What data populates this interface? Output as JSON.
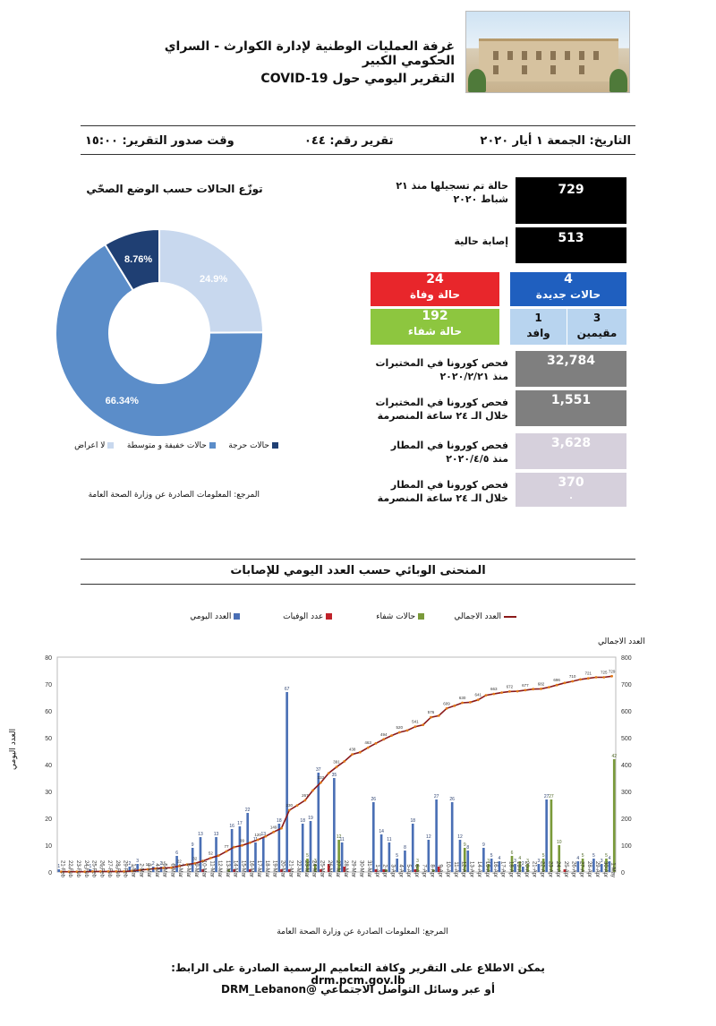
{
  "header": {
    "title_line1": "غرفة العمليات الوطنية لإدارة الكوارث - السراي الحكومي الكبير",
    "title_line2": "التقرير اليومي حول COVID-19"
  },
  "info_bar": {
    "date": "التاريخ: الجمعة ١ أيار ٢٠٢٠",
    "report_no": "تقرير رقم: ٠٤٤",
    "issue_time": "وقت صدور التقرير: ١٥:٠٠"
  },
  "stats": {
    "total_label": "حالة تم تسجيلها منذ ٢١ شباط ٢٠٢٠",
    "total_value": "729",
    "active_label": "إصابة حالية",
    "active_value": "513",
    "new_value": "4",
    "new_label": "حالات جديدة",
    "deaths_value": "24",
    "deaths_label": "حالة وفاة",
    "recovered_value": "192",
    "recovered_label": "حالة شفاء",
    "residents_value": "3",
    "residents_label": "مقيمين",
    "arrivals_value": "1",
    "arrivals_label": "وافد",
    "lab_total_label": "فحص كورونا في المختبرات منذ ٢٠٢٠/٢/٢١",
    "lab_total_value": "32,784",
    "lab_24h_label": "فحص كورونا في المختبرات خلال الـ ٢٤ ساعة المنصرمة",
    "lab_24h_value": "1,551",
    "airport_total_label": "فحص كورونا في المطار منذ ٢٠٢٠/٤/٥",
    "airport_total_value": "3,628",
    "airport_24h_label": "فحص كورونا في المطار خلال الـ ٢٤ ساعة المنصرمة",
    "airport_24h_value": "370",
    "airport_24h_sub": "."
  },
  "donut": {
    "title": "توزّع الحالات حسب الوضع الصحّي",
    "legend": [
      "لا اعراض",
      "حالات خفيفة و متوسطة",
      "حالات حرجة"
    ],
    "source": "المرجع: المعلومات الصادرة عن وزارة الصحة العامة"
  },
  "curve": {
    "title": "المنحنى الوبائي حسب العدد اليومي للإصابات",
    "legend": [
      "العدد اليومي",
      "عدد الوفيات",
      "حالات شفاء",
      "العدد الاجمالي"
    ],
    "right_axis_title": "العدد الاجمالي",
    "left_axis_title": "العدد اليومي",
    "source": "المرجع: المعلومات الصادرة عن وزارة الصحة العامة"
  },
  "footer": {
    "line1": "يمكن الاطلاع على التقرير وكافة التعاميم الرسمية الصادرة على الرابط: drm.pcm.gov.lb",
    "line2": "أو عبر وسائل التواصل الاجتماعي @DRM_Lebanon"
  },
  "colors": {
    "black_box": "#000000",
    "new_cases": "#1f5fbf",
    "deaths": "#e8262b",
    "recovered": "#8dc63f",
    "residents": "#b8d4ef",
    "lab": "#7f7f7f",
    "airport": "#d6d0dc",
    "daily_bar": "#4a6fb5",
    "death_bar": "#c0222a",
    "recovered_bar": "#7a9a3a",
    "total_line": "#8b1a1a"
  },
  "chart_data": [
    {
      "type": "pie",
      "title": "توزّع الحالات حسب الوضع الصحّي",
      "categories": [
        "لا اعراض",
        "حالات خفيفة و متوسطة",
        "حالات حرجة"
      ],
      "values": [
        24.9,
        66.34,
        8.76
      ],
      "value_labels": [
        "24.9%",
        "66.34%",
        "8.76%"
      ],
      "colors": [
        "#c8d8ee",
        "#5b8dc9",
        "#1f3f73"
      ],
      "legend_position": "bottom"
    },
    {
      "type": "bar",
      "title": "المنحنى الوبائي حسب العدد اليومي للإصابات",
      "x": [
        "21-Feb",
        "22-Feb",
        "23-Feb",
        "24-Feb",
        "25-Feb",
        "26-Feb",
        "27-Feb",
        "28-Feb",
        "29-Feb",
        "1-Mar",
        "2-Mar",
        "3-Mar",
        "4-Mar",
        "5-Mar",
        "6-Mar",
        "7-Mar",
        "8-Mar",
        "9-Mar",
        "10-Mar",
        "11-Mar",
        "12-Mar",
        "13-Mar",
        "14-Mar",
        "15-Mar",
        "16-Mar",
        "17-Mar",
        "18-Mar",
        "19-Mar",
        "20-Mar",
        "21-Mar",
        "22-Mar",
        "23-Mar",
        "24-Mar",
        "25-Mar",
        "26-Mar",
        "27-Mar",
        "28-Mar",
        "29-Mar",
        "30-Mar",
        "31-Mar",
        "1-Apr",
        "2-Apr",
        "3-Apr",
        "4-Apr",
        "5-Apr",
        "6-Apr",
        "7-Apr",
        "8-Apr",
        "9-Apr",
        "10-Apr",
        "11-Apr",
        "12-Apr",
        "13-Apr",
        "14-Apr",
        "15-Apr",
        "16-Apr",
        "17-Apr",
        "18-Apr",
        "19-Apr",
        "20-Apr",
        "21-Apr",
        "22-Apr",
        "23-Apr",
        "24-Apr",
        "25-Apr",
        "26-Apr",
        "27-Apr",
        "28-Apr",
        "29-Apr",
        "30-Apr",
        "1-May"
      ],
      "series": [
        {
          "name": "العدد اليومي",
          "axis": "left",
          "kind": "bar",
          "values": [
            1,
            0,
            0,
            0,
            1,
            0,
            0,
            0,
            0,
            2,
            3,
            0,
            2,
            2,
            0,
            6,
            0,
            9,
            13,
            0,
            13,
            0,
            16,
            17,
            22,
            11,
            13,
            0,
            18,
            67,
            0,
            18,
            19,
            37,
            0,
            35,
            11,
            0,
            0,
            0,
            26,
            14,
            11,
            5,
            8,
            18,
            0,
            12,
            27,
            0,
            26,
            12,
            8,
            0,
            9,
            5,
            4,
            0,
            3,
            2,
            0,
            3,
            27,
            0,
            0,
            0,
            4,
            0,
            5,
            3,
            4
          ]
        },
        {
          "name": "عدد الوفيات",
          "axis": "left",
          "kind": "bar",
          "values": [
            0,
            0,
            0,
            0,
            0,
            0,
            0,
            0,
            0,
            0,
            0,
            0,
            0,
            0,
            0,
            0,
            0,
            0,
            1,
            0,
            0,
            0,
            1,
            0,
            1,
            0,
            0,
            0,
            1,
            1,
            0,
            0,
            0,
            1,
            3,
            0,
            2,
            0,
            0,
            0,
            1,
            1,
            0,
            0,
            0,
            1,
            0,
            0,
            2,
            0,
            0,
            0,
            0,
            0,
            0,
            0,
            0,
            0,
            0,
            0,
            0,
            0,
            0,
            0,
            1,
            0,
            0,
            0,
            0,
            0,
            0
          ]
        },
        {
          "name": "حالات شفاء",
          "axis": "left",
          "kind": "bar",
          "values": [
            0,
            0,
            0,
            0,
            0,
            0,
            0,
            0,
            0,
            0,
            0,
            0,
            0,
            0,
            0,
            0,
            0,
            0,
            0,
            0,
            0,
            1,
            0,
            0,
            0,
            0,
            0,
            0,
            0,
            0,
            0,
            5,
            3,
            0,
            0,
            12,
            0,
            0,
            0,
            0,
            0,
            1,
            0,
            0,
            0,
            3,
            0,
            1,
            0,
            0,
            0,
            9,
            0,
            0,
            3,
            0,
            0,
            6,
            4,
            3,
            0,
            5,
            27,
            10,
            0,
            0,
            5,
            0,
            0,
            5,
            42
          ]
        },
        {
          "name": "العدد الاجمالي",
          "axis": "right",
          "kind": "line",
          "values": [
            1,
            1,
            1,
            1,
            2,
            2,
            2,
            2,
            2,
            4,
            7,
            10,
            13,
            15,
            16,
            22,
            28,
            32,
            41,
            52,
            61,
            77,
            93,
            99,
            109,
            120,
            133,
            149,
            163,
            230,
            248,
            267,
            304,
            333,
            368,
            391,
            412,
            438,
            446,
            463,
            479,
            494,
            508,
            520,
            527,
            541,
            548,
            576,
            582,
            609,
            619,
            630,
            632,
            641,
            658,
            663,
            668,
            672,
            673,
            677,
            681,
            682,
            688,
            696,
            704,
            710,
            717,
            721,
            725,
            725,
            729
          ]
        }
      ],
      "ylim_left": [
        0,
        80
      ],
      "ylim_right": [
        0,
        800
      ],
      "yticks_left": [
        0,
        10,
        20,
        30,
        40,
        50,
        60,
        70,
        80
      ],
      "yticks_right": [
        0,
        100,
        200,
        300,
        400,
        500,
        600,
        700,
        800
      ],
      "ylabel": "العدد اليومي",
      "y2label": "العدد الاجمالي",
      "grid": false,
      "legend_position": "top"
    }
  ]
}
